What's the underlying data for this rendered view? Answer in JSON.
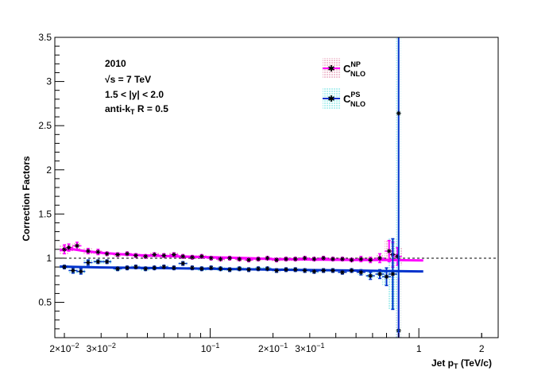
{
  "chart_data": {
    "type": "scatter",
    "xlabel_main": "Jet p",
    "xlabel_sub": "T",
    "xlabel_tail": " (TeV/c)",
    "ylabel": "Correction Factors",
    "xscale": "log",
    "xlim": [
      0.018,
      2.4
    ],
    "ylim": [
      0.1,
      3.5
    ],
    "grid": false,
    "reference_line": 1.0,
    "xticks": [
      {
        "value": 0.02,
        "label": "2×10",
        "exp": "−2"
      },
      {
        "value": 0.03,
        "label": "3×10",
        "exp": "−2"
      },
      {
        "value": 0.1,
        "label": "10",
        "exp": "−1"
      },
      {
        "value": 0.2,
        "label": "2×10",
        "exp": "−1"
      },
      {
        "value": 0.3,
        "label": "3×10",
        "exp": "−1"
      },
      {
        "value": 1,
        "label": "1",
        "exp": ""
      },
      {
        "value": 2,
        "label": "2",
        "exp": ""
      }
    ],
    "yticks": [
      {
        "value": 0.5,
        "label": "0.5"
      },
      {
        "value": 1,
        "label": "1"
      },
      {
        "value": 1.5,
        "label": "1.5"
      },
      {
        "value": 2,
        "label": "2"
      },
      {
        "value": 2.5,
        "label": "2.5"
      },
      {
        "value": 3,
        "label": "3"
      },
      {
        "value": 3.5,
        "label": "3.5"
      }
    ],
    "annotations": {
      "year": "2010",
      "energy_prefix": "√s",
      "energy_suffix": " = 7 TeV",
      "rapidity": "1.5 < |y| < 2.0",
      "algo_prefix": "anti-k",
      "algo_sub": "T",
      "algo_suffix": " R = 0.5"
    },
    "legend_position": "top-right",
    "series": [
      {
        "name": "C",
        "sup": "NP",
        "sub": "NLO",
        "color": "#ff00ff",
        "band_color": "#cc3366",
        "x": [
          0.02,
          0.021,
          0.023,
          0.026,
          0.029,
          0.032,
          0.036,
          0.04,
          0.044,
          0.049,
          0.054,
          0.06,
          0.067,
          0.074,
          0.082,
          0.091,
          0.101,
          0.112,
          0.124,
          0.138,
          0.153,
          0.17,
          0.188,
          0.208,
          0.231,
          0.256,
          0.284,
          0.315,
          0.349,
          0.387,
          0.43,
          0.476,
          0.528,
          0.586,
          0.65,
          0.72,
          0.75,
          0.79
        ],
        "y": [
          1.1,
          1.12,
          1.14,
          1.08,
          1.07,
          1.05,
          1.04,
          1.05,
          1.03,
          1.02,
          1.04,
          1.03,
          1.04,
          1.02,
          1.01,
          1.02,
          1.0,
          0.99,
          1.0,
          0.99,
          0.98,
          0.99,
          1.0,
          0.98,
          0.99,
          0.99,
          1.0,
          0.99,
          1.0,
          0.99,
          0.99,
          0.98,
          0.99,
          0.98,
          1.0,
          1.08,
          1.04,
          1.02
        ],
        "yerr": [
          0.05,
          0.04,
          0.04,
          0.03,
          0.03,
          0.02,
          0.02,
          0.02,
          0.02,
          0.02,
          0.02,
          0.02,
          0.02,
          0.02,
          0.02,
          0.02,
          0.02,
          0.02,
          0.02,
          0.02,
          0.02,
          0.02,
          0.02,
          0.02,
          0.02,
          0.02,
          0.02,
          0.02,
          0.02,
          0.02,
          0.02,
          0.02,
          0.03,
          0.03,
          0.05,
          0.12,
          0.14,
          0.1
        ],
        "extra_points": [
          {
            "x": 0.8,
            "y": 0.18,
            "yerr_low": 0.4,
            "yerr_high": 0.6
          }
        ],
        "fit_x": [
          0.019,
          0.022,
          0.025,
          0.03,
          0.04,
          0.05,
          0.07,
          0.1,
          0.15,
          0.2,
          0.3,
          0.5,
          0.7,
          1.0,
          1.05
        ],
        "fit_y": [
          1.09,
          1.1,
          1.08,
          1.06,
          1.04,
          1.03,
          1.02,
          1.01,
          1.0,
          0.99,
          0.985,
          0.98,
          0.98,
          0.975,
          0.975
        ]
      },
      {
        "name": "C",
        "sup": "PS",
        "sub": "NLO",
        "color": "#0033cc",
        "band_color": "#00cccc",
        "x": [
          0.02,
          0.022,
          0.024,
          0.026,
          0.029,
          0.032,
          0.036,
          0.04,
          0.044,
          0.049,
          0.054,
          0.06,
          0.067,
          0.074,
          0.082,
          0.091,
          0.101,
          0.112,
          0.124,
          0.138,
          0.153,
          0.17,
          0.188,
          0.208,
          0.231,
          0.256,
          0.284,
          0.315,
          0.349,
          0.387,
          0.43,
          0.476,
          0.528,
          0.586,
          0.65,
          0.7,
          0.75
        ],
        "y": [
          0.9,
          0.86,
          0.85,
          0.95,
          0.96,
          0.96,
          0.88,
          0.89,
          0.9,
          0.88,
          0.89,
          0.9,
          0.89,
          0.94,
          0.89,
          0.88,
          0.89,
          0.88,
          0.87,
          0.88,
          0.87,
          0.88,
          0.88,
          0.86,
          0.87,
          0.87,
          0.86,
          0.85,
          0.86,
          0.86,
          0.84,
          0.86,
          0.84,
          0.8,
          0.82,
          0.79,
          0.82
        ],
        "yerr": [
          0.02,
          0.03,
          0.03,
          0.03,
          0.02,
          0.02,
          0.02,
          0.02,
          0.02,
          0.02,
          0.02,
          0.02,
          0.02,
          0.02,
          0.02,
          0.02,
          0.02,
          0.02,
          0.02,
          0.02,
          0.02,
          0.02,
          0.02,
          0.02,
          0.02,
          0.02,
          0.02,
          0.02,
          0.02,
          0.02,
          0.02,
          0.02,
          0.03,
          0.04,
          0.05,
          0.1,
          0.4
        ],
        "extra_points": [
          {
            "x": 0.8,
            "y": 2.64,
            "yerr_low": 2.54,
            "yerr_high": 0.86
          }
        ],
        "fit_x": [
          0.019,
          0.03,
          0.05,
          0.1,
          0.2,
          0.3,
          0.5,
          0.7,
          1.0,
          1.05
        ],
        "fit_y": [
          0.905,
          0.895,
          0.89,
          0.88,
          0.87,
          0.865,
          0.86,
          0.855,
          0.85,
          0.85
        ]
      }
    ]
  }
}
